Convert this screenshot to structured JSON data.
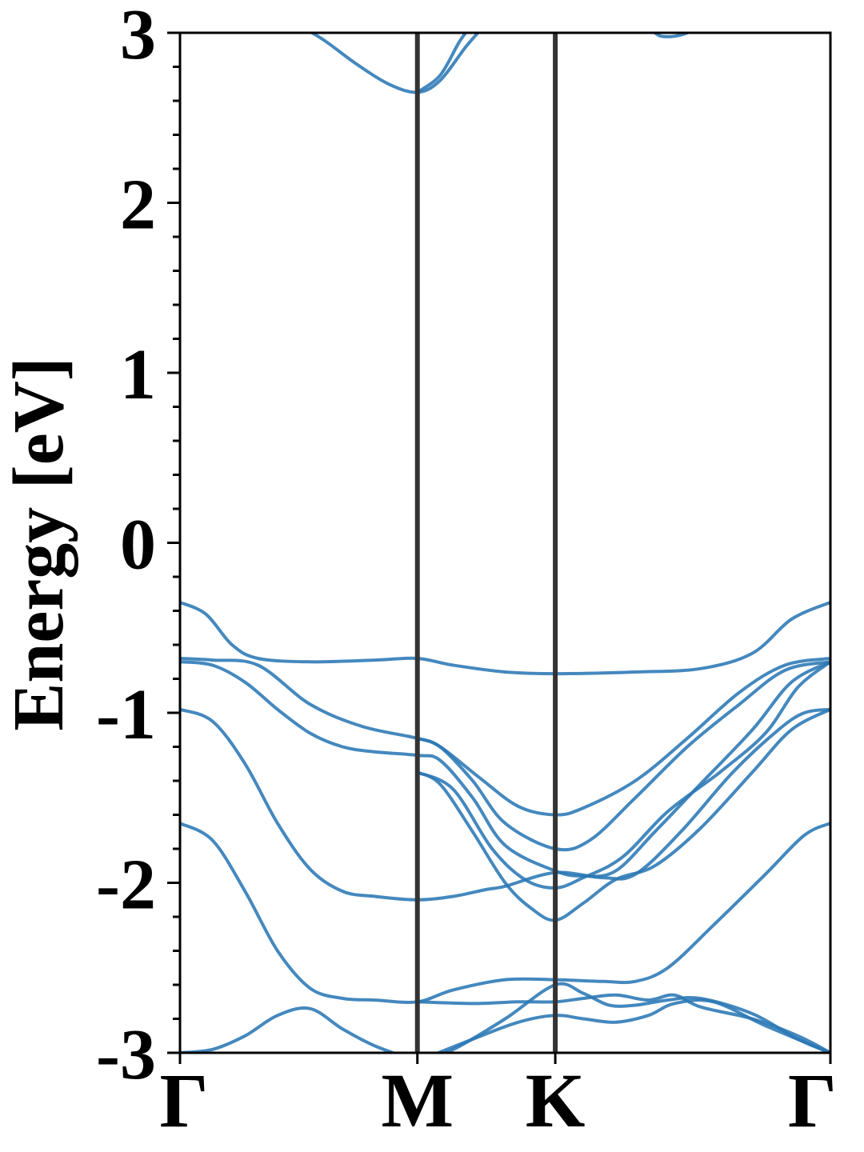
{
  "chart_data": {
    "type": "line",
    "title": "",
    "ylabel": "Energy [eV]",
    "xlabel": "",
    "ylim": [
      -3,
      3
    ],
    "yticks": [
      -3,
      -2,
      -1,
      0,
      1,
      2,
      3
    ],
    "y_minor_step": 0.2,
    "grid": false,
    "legend": "none",
    "kpath": [
      {
        "label": "Γ",
        "x": 0.0
      },
      {
        "label": "M",
        "x": 0.365
      },
      {
        "label": "K",
        "x": 0.577
      },
      {
        "label": "Γ",
        "x": 1.0
      }
    ],
    "line_color": "#2a78b5",
    "divider_color": "#333333",
    "series": [
      {
        "points": [
          [
            0.0,
            -3.0
          ],
          [
            0.05,
            -2.98
          ],
          [
            0.1,
            -2.9
          ],
          [
            0.15,
            -2.78
          ],
          [
            0.2,
            -2.74
          ],
          [
            0.25,
            -2.86
          ],
          [
            0.3,
            -2.96
          ],
          [
            0.365,
            -3.05
          ]
        ]
      },
      {
        "points": [
          [
            0.0,
            -1.65
          ],
          [
            0.05,
            -1.75
          ],
          [
            0.1,
            -2.05
          ],
          [
            0.15,
            -2.4
          ],
          [
            0.2,
            -2.62
          ],
          [
            0.25,
            -2.68
          ],
          [
            0.3,
            -2.69
          ],
          [
            0.365,
            -2.7
          ],
          [
            0.42,
            -2.63
          ],
          [
            0.5,
            -2.57
          ],
          [
            0.577,
            -2.57
          ],
          [
            0.65,
            -2.58
          ],
          [
            0.7,
            -2.58
          ],
          [
            0.75,
            -2.5
          ],
          [
            0.82,
            -2.25
          ],
          [
            0.9,
            -1.95
          ],
          [
            0.96,
            -1.72
          ],
          [
            1.0,
            -1.65
          ]
        ]
      },
      {
        "points": [
          [
            0.0,
            -0.98
          ],
          [
            0.05,
            -1.05
          ],
          [
            0.1,
            -1.3
          ],
          [
            0.15,
            -1.65
          ],
          [
            0.2,
            -1.92
          ],
          [
            0.25,
            -2.05
          ],
          [
            0.3,
            -2.08
          ],
          [
            0.365,
            -2.1
          ],
          [
            0.42,
            -2.08
          ],
          [
            0.47,
            -2.04
          ],
          [
            0.5,
            -2.02
          ],
          [
            0.577,
            -1.94
          ],
          [
            0.65,
            -1.97
          ],
          [
            0.7,
            -1.95
          ],
          [
            0.77,
            -1.7
          ],
          [
            0.85,
            -1.35
          ],
          [
            0.92,
            -1.1
          ],
          [
            0.96,
            -1.0
          ],
          [
            1.0,
            -0.98
          ]
        ]
      },
      {
        "points": [
          [
            0.0,
            -0.7
          ],
          [
            0.05,
            -0.72
          ],
          [
            0.1,
            -0.82
          ],
          [
            0.15,
            -0.98
          ],
          [
            0.2,
            -1.12
          ],
          [
            0.25,
            -1.2
          ],
          [
            0.3,
            -1.23
          ],
          [
            0.365,
            -1.25
          ],
          [
            0.4,
            -1.28
          ],
          [
            0.45,
            -1.5
          ],
          [
            0.5,
            -1.78
          ],
          [
            0.577,
            -1.93
          ],
          [
            0.62,
            -1.96
          ],
          [
            0.67,
            -1.93
          ],
          [
            0.73,
            -1.7
          ],
          [
            0.8,
            -1.42
          ],
          [
            0.88,
            -1.1
          ],
          [
            0.94,
            -0.82
          ],
          [
            1.0,
            -0.7
          ]
        ]
      },
      {
        "points": [
          [
            0.0,
            -0.35
          ],
          [
            0.04,
            -0.42
          ],
          [
            0.08,
            -0.6
          ],
          [
            0.12,
            -0.68
          ],
          [
            0.2,
            -0.7
          ],
          [
            0.3,
            -0.69
          ],
          [
            0.365,
            -0.68
          ],
          [
            0.42,
            -0.72
          ],
          [
            0.5,
            -0.76
          ],
          [
            0.577,
            -0.77
          ],
          [
            0.7,
            -0.76
          ],
          [
            0.8,
            -0.74
          ],
          [
            0.88,
            -0.65
          ],
          [
            0.94,
            -0.45
          ],
          [
            1.0,
            -0.35
          ]
        ]
      },
      {
        "points": [
          [
            0.0,
            -0.68
          ],
          [
            0.05,
            -0.69
          ],
          [
            0.12,
            -0.72
          ],
          [
            0.2,
            -0.95
          ],
          [
            0.28,
            -1.08
          ],
          [
            0.365,
            -1.15
          ],
          [
            0.4,
            -1.2
          ],
          [
            0.46,
            -1.38
          ],
          [
            0.52,
            -1.55
          ],
          [
            0.577,
            -1.6
          ],
          [
            0.62,
            -1.56
          ],
          [
            0.7,
            -1.4
          ],
          [
            0.78,
            -1.15
          ],
          [
            0.86,
            -0.88
          ],
          [
            0.93,
            -0.72
          ],
          [
            1.0,
            -0.68
          ]
        ]
      },
      {
        "points": [
          [
            0.365,
            -1.15
          ],
          [
            0.4,
            -1.2
          ],
          [
            0.45,
            -1.4
          ],
          [
            0.5,
            -1.65
          ],
          [
            0.577,
            -1.8
          ],
          [
            0.63,
            -1.75
          ],
          [
            0.7,
            -1.5
          ],
          [
            0.78,
            -1.2
          ],
          [
            0.86,
            -0.95
          ],
          [
            0.93,
            -0.75
          ],
          [
            1.0,
            -0.7
          ]
        ]
      },
      {
        "points": [
          [
            0.365,
            -1.35
          ],
          [
            0.4,
            -1.42
          ],
          [
            0.45,
            -1.7
          ],
          [
            0.5,
            -2.0
          ],
          [
            0.54,
            -2.15
          ],
          [
            0.577,
            -2.22
          ],
          [
            0.62,
            -2.12
          ],
          [
            0.67,
            -1.98
          ],
          [
            0.73,
            -1.9
          ],
          [
            0.8,
            -1.68
          ],
          [
            0.88,
            -1.35
          ],
          [
            0.94,
            -1.1
          ],
          [
            1.0,
            -0.98
          ]
        ]
      },
      {
        "points": [
          [
            0.365,
            -1.35
          ],
          [
            0.42,
            -1.45
          ],
          [
            0.48,
            -1.8
          ],
          [
            0.53,
            -1.98
          ],
          [
            0.577,
            -2.03
          ],
          [
            0.62,
            -1.97
          ],
          [
            0.68,
            -1.85
          ],
          [
            0.75,
            -1.58
          ],
          [
            0.83,
            -1.35
          ],
          [
            0.9,
            -1.12
          ],
          [
            0.95,
            -0.85
          ],
          [
            1.0,
            -0.7
          ]
        ]
      },
      {
        "points": [
          [
            0.365,
            -2.7
          ],
          [
            0.45,
            -2.71
          ],
          [
            0.52,
            -2.7
          ],
          [
            0.577,
            -2.7
          ],
          [
            0.62,
            -2.68
          ],
          [
            0.67,
            -2.66
          ],
          [
            0.72,
            -2.69
          ],
          [
            0.76,
            -2.66
          ],
          [
            0.8,
            -2.73
          ],
          [
            0.88,
            -2.8
          ],
          [
            0.95,
            -2.9
          ],
          [
            1.0,
            -3.0
          ]
        ]
      },
      {
        "points": [
          [
            0.365,
            -3.05
          ],
          [
            0.42,
            -2.98
          ],
          [
            0.5,
            -2.8
          ],
          [
            0.577,
            -2.6
          ],
          [
            0.62,
            -2.65
          ],
          [
            0.66,
            -2.72
          ],
          [
            0.7,
            -2.72
          ],
          [
            0.75,
            -2.69
          ],
          [
            0.8,
            -2.68
          ],
          [
            0.88,
            -2.77
          ],
          [
            0.95,
            -2.92
          ],
          [
            1.0,
            -3.0
          ]
        ]
      },
      {
        "points": [
          [
            0.365,
            -3.05
          ],
          [
            0.45,
            -2.92
          ],
          [
            0.52,
            -2.82
          ],
          [
            0.577,
            -2.78
          ],
          [
            0.62,
            -2.8
          ],
          [
            0.67,
            -2.82
          ],
          [
            0.72,
            -2.78
          ],
          [
            0.76,
            -2.71
          ],
          [
            0.82,
            -2.7
          ],
          [
            0.9,
            -2.84
          ],
          [
            1.0,
            -3.0
          ]
        ]
      },
      {
        "points": [
          [
            0.18,
            3.05
          ],
          [
            0.22,
            2.96
          ],
          [
            0.27,
            2.82
          ],
          [
            0.32,
            2.7
          ],
          [
            0.365,
            2.65
          ],
          [
            0.4,
            2.72
          ],
          [
            0.44,
            2.92
          ],
          [
            0.47,
            3.05
          ]
        ]
      },
      {
        "points": [
          [
            0.365,
            2.65
          ],
          [
            0.4,
            2.75
          ],
          [
            0.43,
            2.95
          ],
          [
            0.45,
            3.05
          ]
        ]
      },
      {
        "points": [
          [
            0.71,
            3.05
          ],
          [
            0.73,
            3.0
          ],
          [
            0.74,
            2.98
          ],
          [
            0.76,
            2.98
          ],
          [
            0.78,
            3.0
          ],
          [
            0.8,
            3.05
          ]
        ]
      }
    ]
  }
}
